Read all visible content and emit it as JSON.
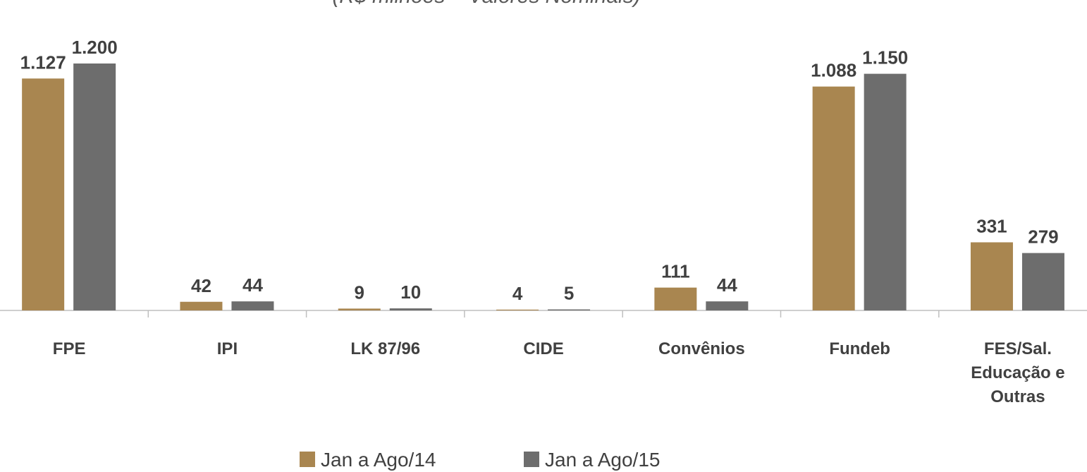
{
  "chart_data": {
    "type": "bar",
    "subtitle": "(R$ milhões – Valores Nominais)",
    "categories": [
      "FPE",
      "IPI",
      "LK 87/96",
      "CIDE",
      "Convênios",
      "Fundeb",
      "FES/Sal. Educação e Outras"
    ],
    "series": [
      {
        "name": "Jan a Ago/14",
        "color": "#a98650",
        "values": [
          1127,
          42,
          9,
          4,
          111,
          1088,
          331
        ],
        "value_labels": [
          "1.127",
          "42",
          "9",
          "4",
          "111",
          "1.088",
          "331"
        ]
      },
      {
        "name": "Jan a Ago/15",
        "color": "#6d6d6d",
        "values": [
          1200,
          44,
          10,
          5,
          44,
          1150,
          279
        ],
        "value_labels": [
          "1.200",
          "44",
          "10",
          "5",
          "44",
          "1.150",
          "279"
        ]
      }
    ],
    "legend": "bottom"
  }
}
